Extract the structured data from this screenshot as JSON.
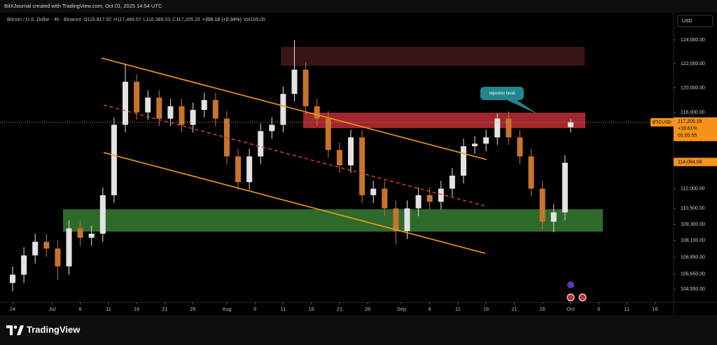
{
  "header": {
    "title": "BitXJournal created with TradingView.com, Oct 01, 2025 14:54 UTC"
  },
  "footer": {
    "brand": "TradingView"
  },
  "chart_data": {
    "type": "candlestick",
    "legend": {
      "symbol": "Bitcoin / U.S. Dollar · 4h · Binance",
      "open": "O116,817.92",
      "high": "H117,484.67",
      "low": "L116,389.03",
      "close": "C117,205.16",
      "change": "+399.18 (+0.34%)",
      "volume": "Vol169.05"
    },
    "currency": "USD",
    "symbol_label": "BTCUSD",
    "annotation": "rejection level",
    "log_scale": true,
    "grid": false,
    "xlim": [
      -2.24,
      117.27
    ],
    "ylim": [
      103620,
      126340
    ],
    "xticks": [
      {
        "value": 0,
        "label": "24"
      },
      {
        "value": 7,
        "label": "Jul"
      },
      {
        "value": 12,
        "label": "6"
      },
      {
        "value": 17,
        "label": "11"
      },
      {
        "value": 22,
        "label": "16"
      },
      {
        "value": 27,
        "label": "21"
      },
      {
        "value": 32,
        "label": "26"
      },
      {
        "value": 38,
        "label": "Aug"
      },
      {
        "value": 43,
        "label": "6"
      },
      {
        "value": 48,
        "label": "11"
      },
      {
        "value": 53,
        "label": "16"
      },
      {
        "value": 58,
        "label": "21"
      },
      {
        "value": 63,
        "label": "26"
      },
      {
        "value": 69,
        "label": "Sep"
      },
      {
        "value": 74,
        "label": "6"
      },
      {
        "value": 79,
        "label": "11"
      },
      {
        "value": 84,
        "label": "16"
      },
      {
        "value": 89,
        "label": "21"
      },
      {
        "value": 94,
        "label": "26"
      },
      {
        "value": 99,
        "label": "Oct"
      },
      {
        "value": 104,
        "label": "6"
      },
      {
        "value": 109,
        "label": "11"
      },
      {
        "value": 114,
        "label": "16"
      }
    ],
    "yticks": [
      {
        "value": 124000,
        "label": "124,000.00"
      },
      {
        "value": 122000,
        "label": "122,000.00"
      },
      {
        "value": 120000,
        "label": "120,000.00"
      },
      {
        "value": 118000,
        "label": "118,000.00"
      },
      {
        "value": 112000,
        "label": "112,000.00"
      },
      {
        "value": 110500,
        "label": "110,500.00"
      },
      {
        "value": 109300,
        "label": "109,300.00"
      },
      {
        "value": 108100,
        "label": "108,100.00"
      },
      {
        "value": 106850,
        "label": "106,850.00"
      },
      {
        "value": 105650,
        "label": "105,650.00"
      },
      {
        "value": 104550,
        "label": "104,550.00"
      }
    ],
    "last_price": {
      "value": 117205.16,
      "label": "117,205.16",
      "change": "+18.61%",
      "countdown": "01:05:55"
    },
    "price_line": {
      "value": 114064.06,
      "label": "114,064.06"
    },
    "series": [
      {
        "up_color": "#e3e3e3",
        "down_color": "#c8742e",
        "x": [
          0,
          2,
          4,
          6,
          8,
          10,
          12,
          14,
          16,
          18,
          20,
          22,
          24,
          26,
          28,
          30,
          32,
          34,
          36,
          38,
          40,
          42,
          44,
          46,
          48,
          50,
          52,
          54,
          56,
          58,
          60,
          62,
          64,
          66,
          68,
          70,
          72,
          74,
          76,
          78,
          80,
          82,
          84,
          86,
          88,
          90,
          92,
          94,
          96,
          98,
          99
        ],
        "open": [
          105000,
          105600,
          107000,
          108000,
          107500,
          106200,
          109000,
          108300,
          108600,
          111500,
          117000,
          120500,
          118000,
          119200,
          117500,
          118500,
          117000,
          118200,
          119000,
          117500,
          114500,
          112500,
          114500,
          116500,
          117000,
          119500,
          121500,
          118500,
          117500,
          115000,
          113800,
          116000,
          111500,
          112000,
          110500,
          108800,
          110500,
          111500,
          111000,
          112000,
          113000,
          115300,
          115500,
          116000,
          117500,
          116000,
          114500,
          112000,
          109500,
          110200,
          116817.92
        ],
        "high": [
          106200,
          107600,
          108600,
          108600,
          108100,
          109600,
          109600,
          109200,
          112100,
          117600,
          122000,
          121100,
          119800,
          119800,
          119100,
          119100,
          118800,
          119600,
          119600,
          118100,
          115100,
          115100,
          117100,
          117600,
          120100,
          124000,
          122100,
          119100,
          118100,
          115600,
          116600,
          116600,
          112600,
          112600,
          111100,
          111100,
          112100,
          112100,
          112600,
          113600,
          115900,
          116100,
          116600,
          117900,
          118100,
          116600,
          115100,
          112600,
          110800,
          114600,
          117484.67
        ],
        "low": [
          104400,
          105000,
          106400,
          106900,
          105200,
          105600,
          107700,
          107700,
          108000,
          110900,
          116400,
          117400,
          117400,
          116900,
          116900,
          116400,
          116400,
          117600,
          116900,
          113900,
          111900,
          111900,
          113900,
          115900,
          116400,
          118900,
          117900,
          116900,
          114400,
          113200,
          113200,
          110900,
          110900,
          109900,
          107800,
          108200,
          109900,
          110400,
          110400,
          111400,
          112400,
          114700,
          114900,
          115400,
          115400,
          113900,
          111400,
          108900,
          108700,
          109600,
          116389.03
        ],
        "close": [
          105600,
          107000,
          108000,
          107500,
          106200,
          109000,
          108300,
          108600,
          111500,
          117000,
          120500,
          118000,
          119200,
          117500,
          118500,
          117000,
          118200,
          119000,
          117500,
          114500,
          112500,
          114500,
          116500,
          117000,
          119500,
          121500,
          118500,
          117500,
          115000,
          113800,
          116000,
          111500,
          112000,
          110500,
          108800,
          110500,
          111500,
          111000,
          112000,
          113000,
          115300,
          115500,
          116000,
          117500,
          116000,
          114500,
          112000,
          109500,
          110200,
          114000,
          117205.16
        ]
      }
    ]
  }
}
